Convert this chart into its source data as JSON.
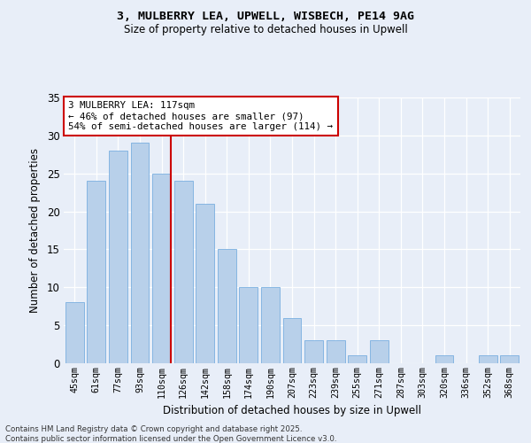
{
  "title_line1": "3, MULBERRY LEA, UPWELL, WISBECH, PE14 9AG",
  "title_line2": "Size of property relative to detached houses in Upwell",
  "xlabel": "Distribution of detached houses by size in Upwell",
  "ylabel": "Number of detached properties",
  "categories": [
    "45sqm",
    "61sqm",
    "77sqm",
    "93sqm",
    "110sqm",
    "126sqm",
    "142sqm",
    "158sqm",
    "174sqm",
    "190sqm",
    "207sqm",
    "223sqm",
    "239sqm",
    "255sqm",
    "271sqm",
    "287sqm",
    "303sqm",
    "320sqm",
    "336sqm",
    "352sqm",
    "368sqm"
  ],
  "values": [
    8,
    24,
    28,
    29,
    25,
    24,
    21,
    15,
    10,
    10,
    6,
    3,
    3,
    1,
    3,
    0,
    0,
    1,
    0,
    1,
    1
  ],
  "bar_color": "#b8d0ea",
  "bar_edge_color": "#7aafe0",
  "vline_x_index": 4,
  "vline_color": "#cc0000",
  "annotation_text": "3 MULBERRY LEA: 117sqm\n← 46% of detached houses are smaller (97)\n54% of semi-detached houses are larger (114) →",
  "annotation_box_color": "#ffffff",
  "annotation_box_edge": "#cc0000",
  "ylim": [
    0,
    35
  ],
  "yticks": [
    0,
    5,
    10,
    15,
    20,
    25,
    30,
    35
  ],
  "background_color": "#e8eef8",
  "grid_color": "#ffffff",
  "footer_line1": "Contains HM Land Registry data © Crown copyright and database right 2025.",
  "footer_line2": "Contains public sector information licensed under the Open Government Licence v3.0."
}
